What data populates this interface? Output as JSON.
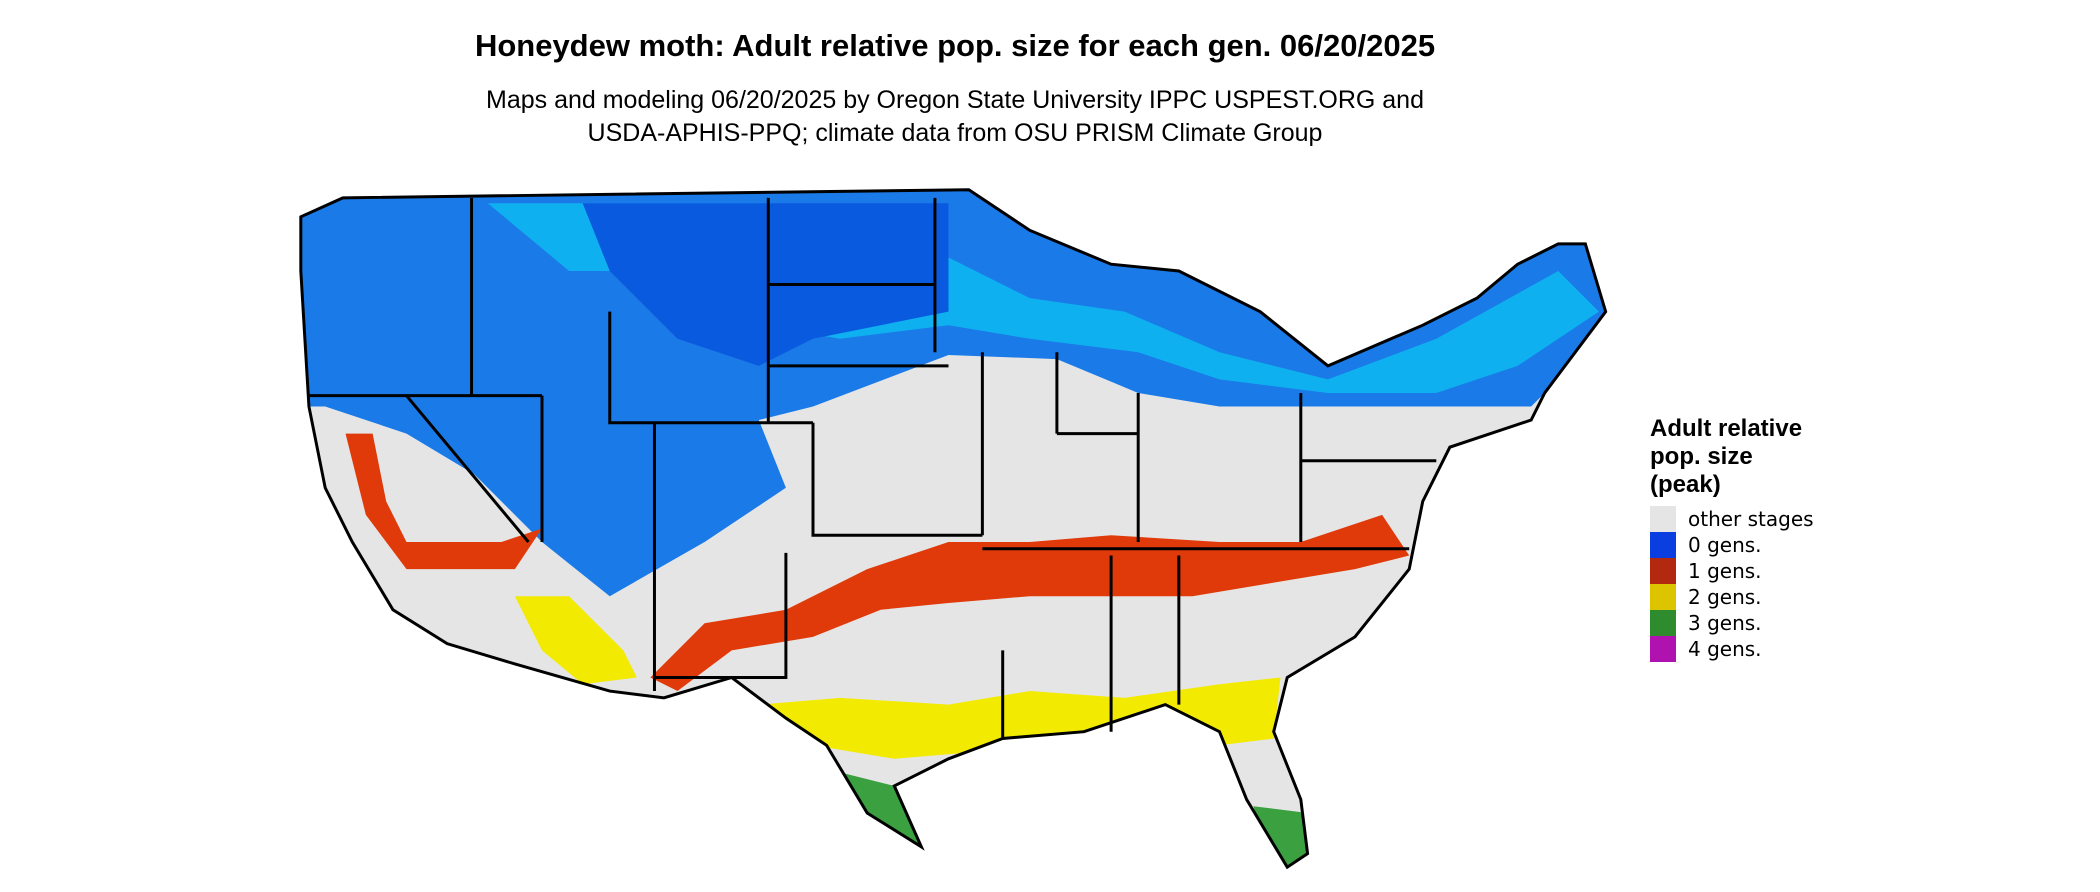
{
  "header": {
    "title": "Honeydew moth: Adult relative pop. size for each gen. 06/20/2025",
    "subtitle": [
      "Maps and modeling 06/20/2025 by Oregon State University IPPC USPEST.ORG and",
      "USDA-APHIS-PPQ; climate data from OSU PRISM Climate Group"
    ]
  },
  "legend": {
    "title": [
      "Adult relative",
      "pop. size",
      "(peak)"
    ],
    "items": [
      {
        "label": "other stages",
        "color": "#e5e5e5"
      },
      {
        "label": "0 gens.",
        "color": "#0a3ee0"
      },
      {
        "label": "1 gens.",
        "color": "#b3290f"
      },
      {
        "label": "2 gens.",
        "color": "#ddc400"
      },
      {
        "label": "3 gens.",
        "color": "#2e8b2e"
      },
      {
        "label": "4 gens.",
        "color": "#b012b0"
      }
    ]
  }
}
